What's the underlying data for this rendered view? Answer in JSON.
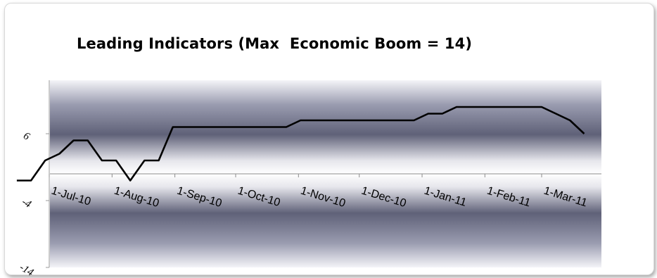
{
  "chart_data": {
    "type": "line",
    "title": "Leading Indicators (Max  Economic Boom = 14)",
    "xlabel": "",
    "ylabel": "",
    "ylim": [
      -14,
      14
    ],
    "yticks": [
      "6",
      "-4",
      "-14"
    ],
    "xticks": [
      "1-Jul-10",
      "1-Aug-10",
      "1-Sep-10",
      "1-Oct-10",
      "1-Nov-10",
      "1-Dec-10",
      "1-Jan-11",
      "1-Feb-11",
      "1-Mar-11"
    ],
    "grid": false,
    "legend": "none",
    "line_color": "#000000",
    "background": "banded gray gradient",
    "series": [
      {
        "values": [
          {
            "x": "2010-06-15",
            "y": -1
          },
          {
            "x": "2010-06-22",
            "y": -1
          },
          {
            "x": "2010-06-29",
            "y": 2
          },
          {
            "x": "2010-07-06",
            "y": 3
          },
          {
            "x": "2010-07-13",
            "y": 5
          },
          {
            "x": "2010-07-20",
            "y": 5
          },
          {
            "x": "2010-07-27",
            "y": 2
          },
          {
            "x": "2010-08-03",
            "y": 2
          },
          {
            "x": "2010-08-10",
            "y": -1
          },
          {
            "x": "2010-08-17",
            "y": 2
          },
          {
            "x": "2010-08-24",
            "y": 2
          },
          {
            "x": "2010-08-31",
            "y": 7
          },
          {
            "x": "2010-09-07",
            "y": 7
          },
          {
            "x": "2010-10-26",
            "y": 7
          },
          {
            "x": "2010-11-02",
            "y": 8
          },
          {
            "x": "2010-12-28",
            "y": 8
          },
          {
            "x": "2011-01-04",
            "y": 9
          },
          {
            "x": "2011-01-11",
            "y": 9
          },
          {
            "x": "2011-01-18",
            "y": 10
          },
          {
            "x": "2011-03-01",
            "y": 10
          },
          {
            "x": "2011-03-08",
            "y": 9
          },
          {
            "x": "2011-03-15",
            "y": 8
          },
          {
            "x": "2011-03-22",
            "y": 6
          }
        ]
      }
    ]
  }
}
